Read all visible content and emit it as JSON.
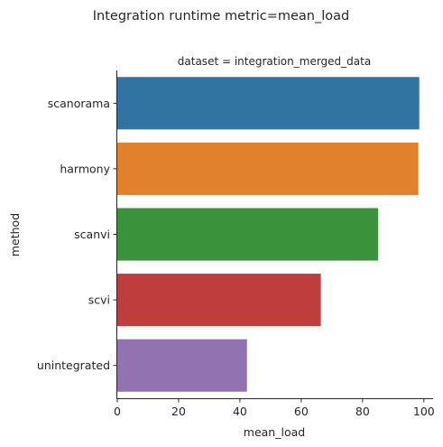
{
  "chart_data": {
    "type": "bar",
    "orientation": "horizontal",
    "title": "Integration runtime metric=mean_load",
    "facet_title": "dataset = integration_merged_data",
    "xlabel": "mean_load",
    "ylabel": "method",
    "xlim": [
      0,
      103
    ],
    "xticks": [
      "0",
      "20",
      "40",
      "60",
      "80",
      "100"
    ],
    "categories": [
      "scanorama",
      "harmony",
      "scanvi",
      "scvi",
      "unintegrated"
    ],
    "values": [
      98.5,
      98.2,
      85.1,
      66.4,
      42.3
    ],
    "colors": [
      "#3274a1",
      "#e1812c",
      "#3a923a",
      "#c03d3e",
      "#9372b2"
    ],
    "grid": false,
    "legend": "none"
  }
}
